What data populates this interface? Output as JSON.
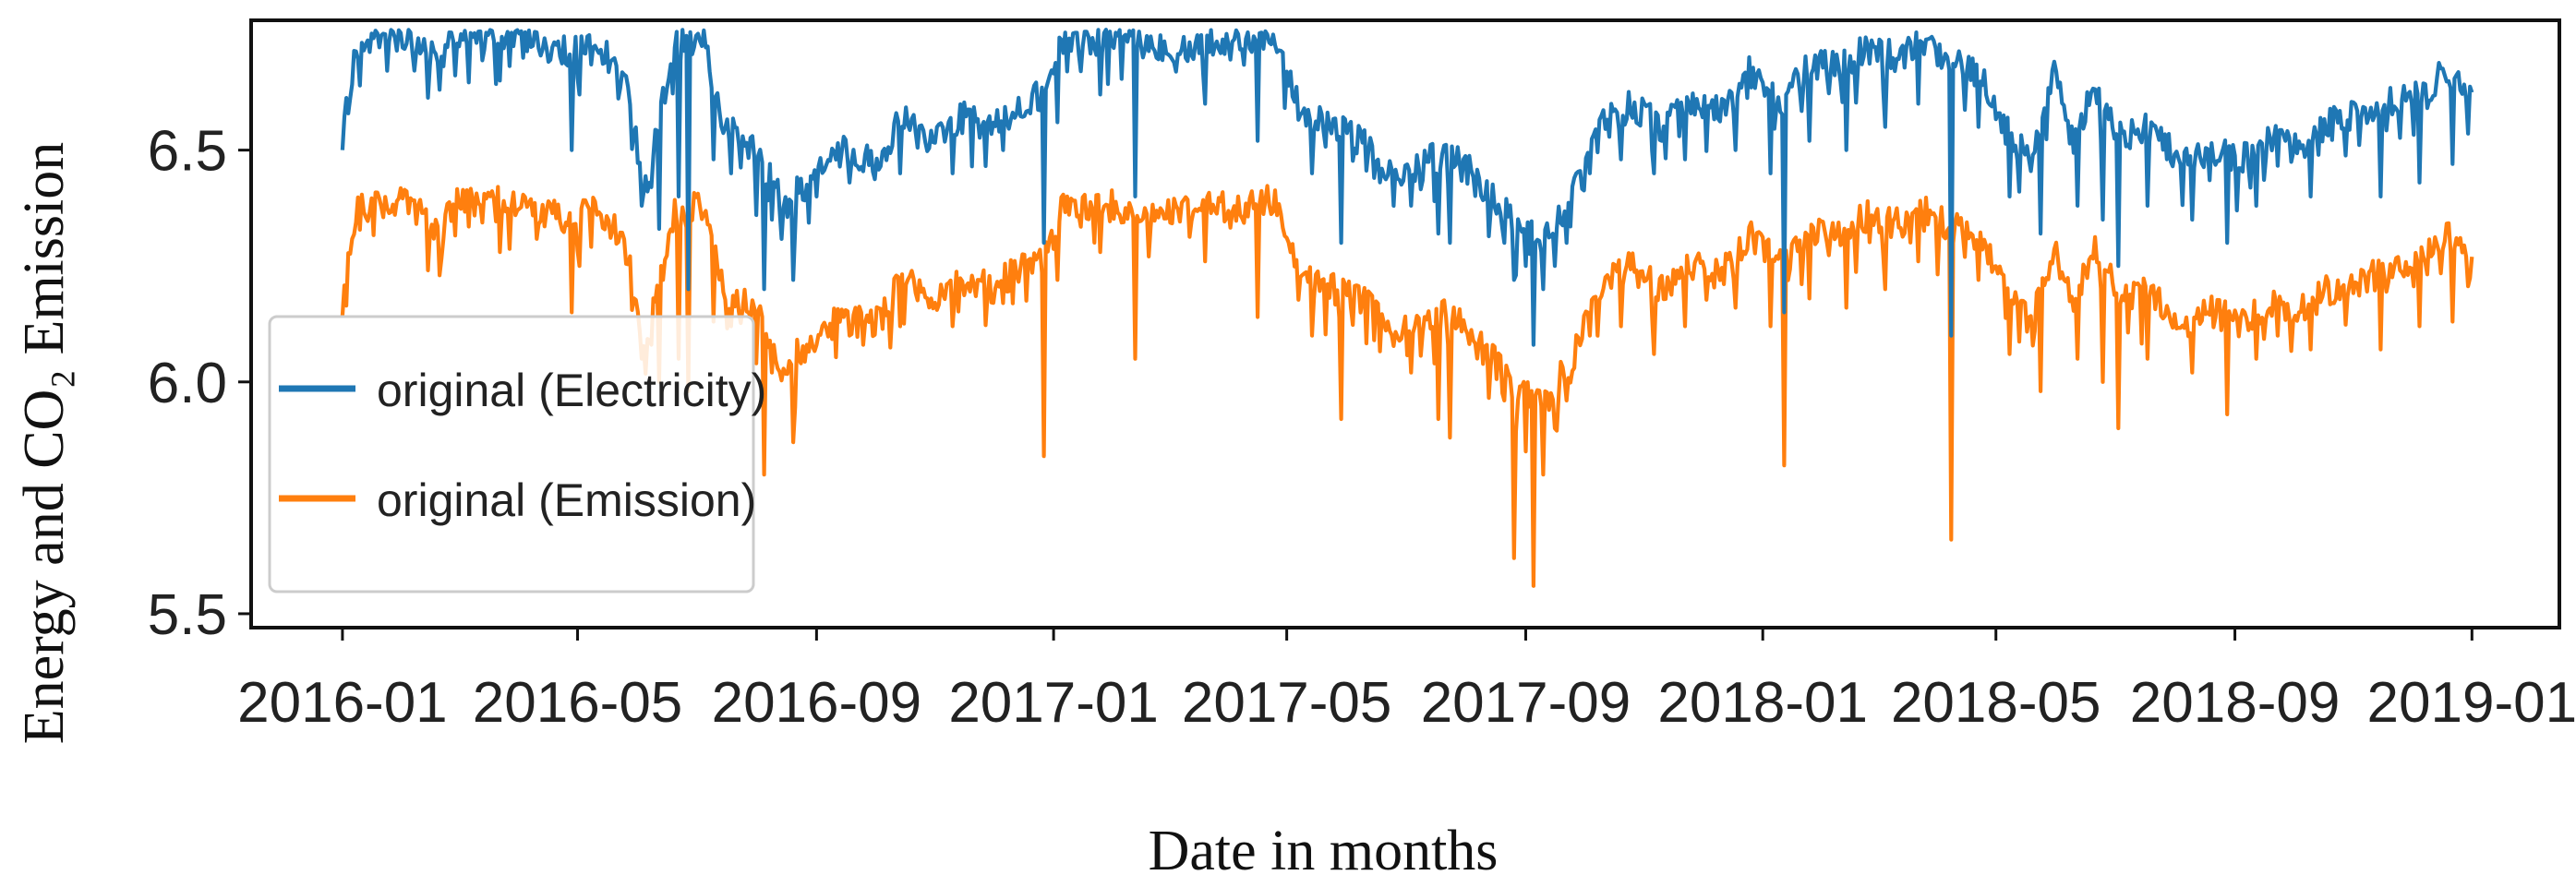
{
  "chart_data": {
    "type": "line",
    "title": "",
    "xlabel": "Date in months",
    "ylabel": "Energy and CO₂ Emission",
    "x_range": [
      "2016-01-01",
      "2019-01-01"
    ],
    "xlim": [
      "2015-11-15",
      "2019-02-15"
    ],
    "ylim": [
      5.47,
      6.78
    ],
    "x_ticks": [
      "2016-01",
      "2016-05",
      "2016-09",
      "2017-01",
      "2017-05",
      "2017-09",
      "2018-01",
      "2018-05",
      "2018-09",
      "2019-01"
    ],
    "y_ticks": [
      "5.5",
      "6.0",
      "6.5"
    ],
    "y_tick_values": [
      5.5,
      6.0,
      6.5
    ],
    "grid": false,
    "legend_position": "left",
    "series": [
      {
        "name": "original (Electricity)",
        "color": "#1f77b4",
        "points": [
          [
            "2016-01-01",
            6.53
          ],
          [
            "2016-01-08",
            6.72
          ],
          [
            "2016-01-15",
            6.74
          ],
          [
            "2016-02-01",
            6.75
          ],
          [
            "2016-02-20",
            6.69
          ],
          [
            "2016-03-01",
            6.75
          ],
          [
            "2016-04-01",
            6.75
          ],
          [
            "2016-04-25",
            6.71
          ],
          [
            "2016-05-10",
            6.74
          ],
          [
            "2016-05-25",
            6.65
          ],
          [
            "2016-06-05",
            6.42
          ],
          [
            "2016-06-20",
            6.72
          ],
          [
            "2016-07-05",
            6.74
          ],
          [
            "2016-07-15",
            6.55
          ],
          [
            "2016-08-01",
            6.5
          ],
          [
            "2016-08-15",
            6.38
          ],
          [
            "2016-09-01",
            6.45
          ],
          [
            "2016-09-15",
            6.5
          ],
          [
            "2016-10-01",
            6.47
          ],
          [
            "2016-10-15",
            6.57
          ],
          [
            "2016-11-01",
            6.52
          ],
          [
            "2016-11-15",
            6.57
          ],
          [
            "2016-12-01",
            6.55
          ],
          [
            "2016-12-15",
            6.6
          ],
          [
            "2016-12-28",
            6.62
          ],
          [
            "2017-01-05",
            6.74
          ],
          [
            "2017-02-01",
            6.74
          ],
          [
            "2017-03-01",
            6.72
          ],
          [
            "2017-04-01",
            6.74
          ],
          [
            "2017-04-25",
            6.75
          ],
          [
            "2017-05-10",
            6.57
          ],
          [
            "2017-05-25",
            6.55
          ],
          [
            "2017-06-10",
            6.52
          ],
          [
            "2017-06-25",
            6.45
          ],
          [
            "2017-07-10",
            6.47
          ],
          [
            "2017-07-25",
            6.5
          ],
          [
            "2017-08-10",
            6.42
          ],
          [
            "2017-08-25",
            6.35
          ],
          [
            "2017-09-10",
            6.3
          ],
          [
            "2017-09-25",
            6.4
          ],
          [
            "2017-10-10",
            6.55
          ],
          [
            "2017-10-25",
            6.6
          ],
          [
            "2017-11-10",
            6.55
          ],
          [
            "2017-11-25",
            6.6
          ],
          [
            "2017-12-10",
            6.58
          ],
          [
            "2017-12-25",
            6.67
          ],
          [
            "2018-01-10",
            6.6
          ],
          [
            "2018-01-25",
            6.68
          ],
          [
            "2018-02-10",
            6.68
          ],
          [
            "2018-02-25",
            6.72
          ],
          [
            "2018-03-10",
            6.7
          ],
          [
            "2018-03-25",
            6.73
          ],
          [
            "2018-04-10",
            6.69
          ],
          [
            "2018-04-25",
            6.65
          ],
          [
            "2018-05-10",
            6.52
          ],
          [
            "2018-05-20",
            6.48
          ],
          [
            "2018-06-01",
            6.68
          ],
          [
            "2018-06-10",
            6.5
          ],
          [
            "2018-06-20",
            6.65
          ],
          [
            "2018-07-05",
            6.52
          ],
          [
            "2018-07-20",
            6.55
          ],
          [
            "2018-08-05",
            6.47
          ],
          [
            "2018-08-20",
            6.5
          ],
          [
            "2018-09-05",
            6.48
          ],
          [
            "2018-09-20",
            6.52
          ],
          [
            "2018-10-05",
            6.5
          ],
          [
            "2018-10-20",
            6.56
          ],
          [
            "2018-11-05",
            6.58
          ],
          [
            "2018-11-20",
            6.6
          ],
          [
            "2018-12-05",
            6.62
          ],
          [
            "2018-12-20",
            6.67
          ],
          [
            "2019-01-01",
            6.6
          ]
        ]
      },
      {
        "name": "original (Emission)",
        "color": "#ff7f0e",
        "points": [
          [
            "2016-01-01",
            6.17
          ],
          [
            "2016-01-08",
            6.37
          ],
          [
            "2016-01-15",
            6.38
          ],
          [
            "2016-02-01",
            6.39
          ],
          [
            "2016-02-20",
            6.33
          ],
          [
            "2016-03-01",
            6.39
          ],
          [
            "2016-04-01",
            6.39
          ],
          [
            "2016-04-25",
            6.35
          ],
          [
            "2016-05-10",
            6.38
          ],
          [
            "2016-05-25",
            6.3
          ],
          [
            "2016-06-05",
            6.08
          ],
          [
            "2016-06-20",
            6.36
          ],
          [
            "2016-07-05",
            6.38
          ],
          [
            "2016-07-15",
            6.2
          ],
          [
            "2016-08-01",
            6.15
          ],
          [
            "2016-08-15",
            6.03
          ],
          [
            "2016-09-01",
            6.1
          ],
          [
            "2016-09-15",
            6.14
          ],
          [
            "2016-10-01",
            6.12
          ],
          [
            "2016-10-15",
            6.22
          ],
          [
            "2016-11-01",
            6.17
          ],
          [
            "2016-11-15",
            6.22
          ],
          [
            "2016-12-01",
            6.2
          ],
          [
            "2016-12-15",
            6.25
          ],
          [
            "2016-12-28",
            6.27
          ],
          [
            "2017-01-05",
            6.38
          ],
          [
            "2017-02-01",
            6.38
          ],
          [
            "2017-03-01",
            6.36
          ],
          [
            "2017-04-01",
            6.38
          ],
          [
            "2017-04-25",
            6.39
          ],
          [
            "2017-05-10",
            6.22
          ],
          [
            "2017-05-25",
            6.2
          ],
          [
            "2017-06-10",
            6.17
          ],
          [
            "2017-06-25",
            6.1
          ],
          [
            "2017-07-10",
            6.12
          ],
          [
            "2017-07-25",
            6.15
          ],
          [
            "2017-08-10",
            6.07
          ],
          [
            "2017-08-25",
            6.0
          ],
          [
            "2017-09-10",
            5.95
          ],
          [
            "2017-09-25",
            6.05
          ],
          [
            "2017-10-10",
            6.2
          ],
          [
            "2017-10-25",
            6.25
          ],
          [
            "2017-11-10",
            6.2
          ],
          [
            "2017-11-25",
            6.25
          ],
          [
            "2017-12-10",
            6.23
          ],
          [
            "2017-12-25",
            6.32
          ],
          [
            "2018-01-10",
            6.25
          ],
          [
            "2018-01-25",
            6.32
          ],
          [
            "2018-02-10",
            6.32
          ],
          [
            "2018-02-25",
            6.36
          ],
          [
            "2018-03-10",
            6.34
          ],
          [
            "2018-03-25",
            6.37
          ],
          [
            "2018-04-10",
            6.33
          ],
          [
            "2018-04-25",
            6.3
          ],
          [
            "2018-05-10",
            6.17
          ],
          [
            "2018-05-20",
            6.13
          ],
          [
            "2018-06-01",
            6.3
          ],
          [
            "2018-06-10",
            6.15
          ],
          [
            "2018-06-20",
            6.3
          ],
          [
            "2018-07-05",
            6.17
          ],
          [
            "2018-07-20",
            6.2
          ],
          [
            "2018-08-05",
            6.12
          ],
          [
            "2018-08-20",
            6.15
          ],
          [
            "2018-09-05",
            6.13
          ],
          [
            "2018-09-20",
            6.17
          ],
          [
            "2018-10-05",
            6.15
          ],
          [
            "2018-10-20",
            6.2
          ],
          [
            "2018-11-05",
            6.22
          ],
          [
            "2018-11-20",
            6.24
          ],
          [
            "2018-12-05",
            6.26
          ],
          [
            "2018-12-20",
            6.31
          ],
          [
            "2019-01-01",
            6.25
          ]
        ]
      }
    ],
    "dips": [
      [
        "2016-02-20",
        6.63,
        6.23
      ],
      [
        "2016-03-22",
        6.65,
        6.28
      ],
      [
        "2016-04-28",
        6.5,
        6.15
      ],
      [
        "2016-05-02",
        6.62,
        6.25
      ],
      [
        "2016-06-03",
        6.38,
        6.05
      ],
      [
        "2016-06-08",
        6.42,
        6.08
      ],
      [
        "2016-06-12",
        6.33,
        6.0
      ],
      [
        "2016-06-22",
        6.4,
        6.05
      ],
      [
        "2016-06-27",
        6.2,
        5.98
      ],
      [
        "2016-07-10",
        6.48,
        6.13
      ],
      [
        "2016-07-19",
        6.45,
        6.12
      ],
      [
        "2016-08-01",
        6.36,
        6.04
      ],
      [
        "2016-08-05",
        6.2,
        5.8
      ],
      [
        "2016-08-09",
        6.35,
        6.02
      ],
      [
        "2016-08-20",
        6.22,
        5.87
      ],
      [
        "2016-09-01",
        6.4,
        6.08
      ],
      [
        "2016-09-18",
        6.43,
        6.1
      ],
      [
        "2016-10-14",
        6.45,
        6.12
      ],
      [
        "2016-11-10",
        6.45,
        6.12
      ],
      [
        "2016-12-06",
        6.5,
        6.17
      ],
      [
        "2016-12-27",
        6.3,
        5.84
      ],
      [
        "2017-01-03",
        6.56,
        6.22
      ],
      [
        "2017-01-25",
        6.62,
        6.28
      ],
      [
        "2017-02-12",
        6.4,
        6.05
      ],
      [
        "2017-03-20",
        6.6,
        6.26
      ],
      [
        "2017-04-16",
        6.52,
        6.14
      ],
      [
        "2017-05-14",
        6.45,
        6.1
      ],
      [
        "2017-05-29",
        6.3,
        5.92
      ],
      [
        "2017-06-15",
        6.44,
        6.09
      ],
      [
        "2017-07-04",
        6.38,
        6.02
      ],
      [
        "2017-07-18",
        6.32,
        5.92
      ],
      [
        "2017-07-24",
        6.3,
        5.88
      ],
      [
        "2017-08-08",
        6.44,
        6.09
      ],
      [
        "2017-08-21",
        6.3,
        5.96
      ],
      [
        "2017-08-26",
        6.22,
        5.62
      ],
      [
        "2017-09-01",
        6.25,
        5.85
      ],
      [
        "2017-09-05",
        6.08,
        5.56
      ],
      [
        "2017-09-10",
        6.2,
        5.8
      ],
      [
        "2017-09-16",
        6.25,
        5.9
      ],
      [
        "2017-09-22",
        6.3,
        5.96
      ],
      [
        "2017-10-04",
        6.45,
        6.1
      ],
      [
        "2017-10-20",
        6.48,
        6.12
      ],
      [
        "2017-11-06",
        6.45,
        6.06
      ],
      [
        "2017-11-22",
        6.48,
        6.12
      ],
      [
        "2017-12-18",
        6.5,
        6.16
      ],
      [
        "2018-01-05",
        6.45,
        6.12
      ],
      [
        "2018-01-12",
        6.15,
        5.82
      ],
      [
        "2018-01-25",
        6.52,
        6.18
      ],
      [
        "2018-02-13",
        6.5,
        6.16
      ],
      [
        "2018-03-05",
        6.55,
        6.2
      ],
      [
        "2018-03-22",
        6.6,
        6.26
      ],
      [
        "2018-04-08",
        6.1,
        5.66
      ],
      [
        "2018-04-22",
        6.55,
        6.22
      ],
      [
        "2018-05-08",
        6.4,
        6.06
      ],
      [
        "2018-05-24",
        6.32,
        5.98
      ],
      [
        "2018-06-12",
        6.38,
        6.05
      ],
      [
        "2018-06-25",
        6.35,
        6.0
      ],
      [
        "2018-07-03",
        6.25,
        5.9
      ],
      [
        "2018-07-18",
        6.38,
        6.05
      ],
      [
        "2018-08-10",
        6.35,
        6.02
      ],
      [
        "2018-08-28",
        6.3,
        5.93
      ],
      [
        "2018-09-12",
        6.38,
        6.05
      ],
      [
        "2018-10-10",
        6.4,
        6.07
      ],
      [
        "2018-11-15",
        6.4,
        6.07
      ],
      [
        "2018-12-05",
        6.43,
        6.12
      ],
      [
        "2018-12-22",
        6.47,
        6.13
      ]
    ]
  }
}
